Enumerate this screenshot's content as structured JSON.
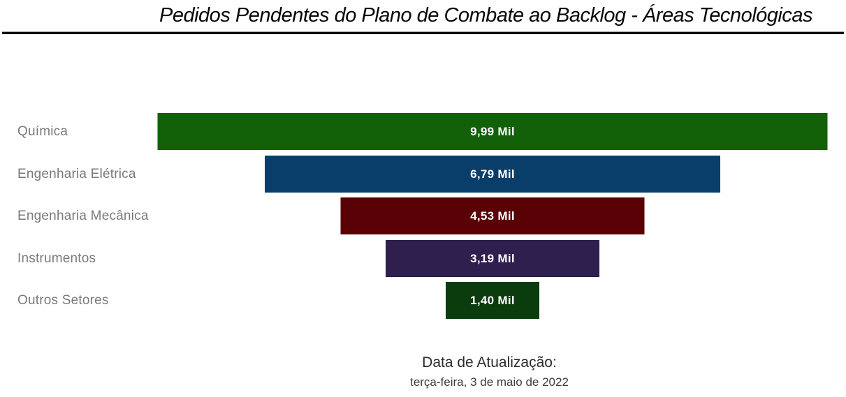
{
  "title": "Pedidos Pendentes do Plano de Combate ao Backlog - Áreas Tecnológicas",
  "chart_data": {
    "type": "funnel",
    "orientation": "horizontal-centered",
    "title": "Pedidos Pendentes do Plano de Combate ao Backlog - Áreas Tecnológicas",
    "unit": "Mil",
    "categories": [
      "Química",
      "Engenharia Elétrica",
      "Engenharia Mecânica",
      "Instrumentos",
      "Outros Setores"
    ],
    "values": [
      9.99,
      6.79,
      4.53,
      3.19,
      1.4
    ],
    "value_labels": [
      "9,99 Mil",
      "6,79 Mil",
      "4,53 Mil",
      "3,19 Mil",
      "1,40 Mil"
    ],
    "colors": [
      "#126109",
      "#093e6a",
      "#590105",
      "#2e1f4e",
      "#0b3c0d"
    ],
    "category_label_color": "#7a7a7a",
    "value_label_color": "#ffffff",
    "legend": "none",
    "grid": false
  },
  "footer": {
    "label": "Data de Atualização:",
    "date": "terça-feira, 3 de maio de 2022"
  }
}
